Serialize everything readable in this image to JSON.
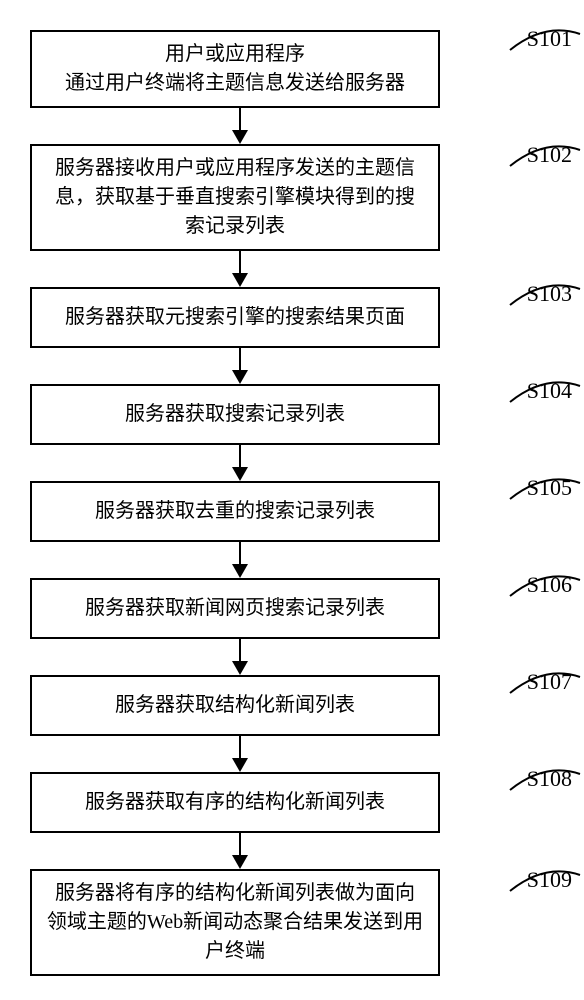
{
  "type": "flowchart",
  "direction": "vertical",
  "background_color": "#ffffff",
  "box_border_color": "#000000",
  "box_border_width": 2,
  "arrow_color": "#000000",
  "font_family": "SimSun",
  "label_fontsize": 22,
  "box_fontsize": 20,
  "steps": [
    {
      "id": "S101",
      "text": "用户或应用程序\n通过用户终端将主题信息发送给服务器"
    },
    {
      "id": "S102",
      "text": "服务器接收用户或应用程序发送的主题信息，获取基于垂直搜索引擎模块得到的搜索记录列表"
    },
    {
      "id": "S103",
      "text": "服务器获取元搜索引擎的搜索结果页面"
    },
    {
      "id": "S104",
      "text": "服务器获取搜索记录列表"
    },
    {
      "id": "S105",
      "text": "服务器获取去重的搜索记录列表"
    },
    {
      "id": "S106",
      "text": "服务器获取新闻网页搜索记录列表"
    },
    {
      "id": "S107",
      "text": "服务器获取结构化新闻列表"
    },
    {
      "id": "S108",
      "text": "服务器获取有序的结构化新闻列表"
    },
    {
      "id": "S109",
      "text": "服务器将有序的结构化新闻列表做为面向领域主题的Web新闻动态聚合结果发送到用户终端"
    }
  ]
}
